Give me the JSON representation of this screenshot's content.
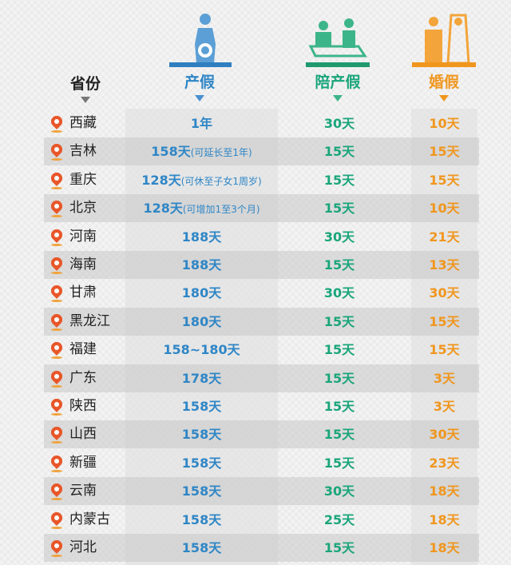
{
  "colors": {
    "maternity": "#2f86c6",
    "paternity": "#1aa57a",
    "marriage": "#f0961e",
    "province": "#222222",
    "pin": "#e8572a"
  },
  "headers": {
    "province": "省份",
    "maternity": "产假",
    "paternity": "陪产假",
    "marriage": "婚假"
  },
  "icons": {
    "maternity": "pregnant-woman-icon",
    "paternity": "father-with-newborn-icon",
    "marriage": "bride-groom-icon",
    "row": "map-pin-icon"
  },
  "rows": [
    {
      "province": "西藏",
      "maternity": "1年",
      "note": "",
      "paternity": "30天",
      "marriage": "10天"
    },
    {
      "province": "吉林",
      "maternity": "158天",
      "note": "(可延长至1年)",
      "paternity": "15天",
      "marriage": "15天"
    },
    {
      "province": "重庆",
      "maternity": "128天",
      "note": "(可休至子女1周岁)",
      "paternity": "15天",
      "marriage": "15天"
    },
    {
      "province": "北京",
      "maternity": "128天",
      "note": "(可增加1至3个月)",
      "paternity": "15天",
      "marriage": "10天"
    },
    {
      "province": "河南",
      "maternity": "188天",
      "note": "",
      "paternity": "30天",
      "marriage": "21天"
    },
    {
      "province": "海南",
      "maternity": "188天",
      "note": "",
      "paternity": "15天",
      "marriage": "13天"
    },
    {
      "province": "甘肃",
      "maternity": "180天",
      "note": "",
      "paternity": "30天",
      "marriage": "30天"
    },
    {
      "province": "黑龙江",
      "maternity": "180天",
      "note": "",
      "paternity": "15天",
      "marriage": "15天"
    },
    {
      "province": "福建",
      "maternity": "158~180天",
      "note": "",
      "paternity": "15天",
      "marriage": "15天"
    },
    {
      "province": "广东",
      "maternity": "178天",
      "note": "",
      "paternity": "15天",
      "marriage": "3天"
    },
    {
      "province": "陕西",
      "maternity": "158天",
      "note": "",
      "paternity": "15天",
      "marriage": "3天"
    },
    {
      "province": "山西",
      "maternity": "158天",
      "note": "",
      "paternity": "15天",
      "marriage": "30天"
    },
    {
      "province": "新疆",
      "maternity": "158天",
      "note": "",
      "paternity": "15天",
      "marriage": "23天"
    },
    {
      "province": "云南",
      "maternity": "158天",
      "note": "",
      "paternity": "30天",
      "marriage": "18天"
    },
    {
      "province": "内蒙古",
      "maternity": "158天",
      "note": "",
      "paternity": "25天",
      "marriage": "18天"
    },
    {
      "province": "河北",
      "maternity": "158天",
      "note": "",
      "paternity": "15天",
      "marriage": "18天"
    }
  ]
}
